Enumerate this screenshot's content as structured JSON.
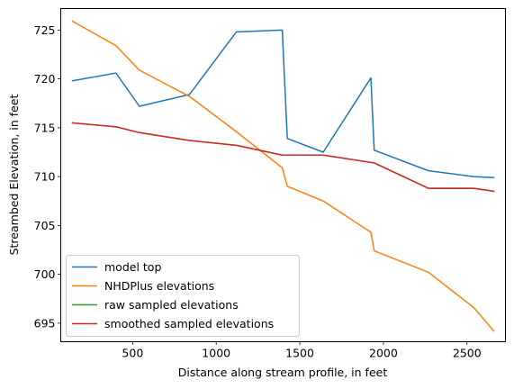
{
  "chart_data": {
    "type": "line",
    "title": "",
    "xlabel": "Distance along stream profile, in feet",
    "ylabel": "Streambed Elevation, in feet",
    "xlim": [
      70,
      2730
    ],
    "ylim": [
      693.1,
      727.2
    ],
    "xticks": [
      500,
      1000,
      1500,
      2000,
      2500
    ],
    "yticks": [
      695,
      700,
      705,
      710,
      715,
      720,
      725
    ],
    "grid": false,
    "legend_position": "lower left",
    "series": [
      {
        "name": "model top",
        "color": "#1f77b4",
        "points": [
          [
            140,
            719.8
          ],
          [
            400,
            720.6
          ],
          [
            540,
            717.2
          ],
          [
            840,
            718.4
          ],
          [
            1120,
            724.8
          ],
          [
            1395,
            725.0
          ],
          [
            1425,
            713.9
          ],
          [
            1640,
            712.5
          ],
          [
            1925,
            720.1
          ],
          [
            1945,
            712.7
          ],
          [
            2270,
            710.6
          ],
          [
            2540,
            710.0
          ],
          [
            2660,
            709.9
          ]
        ]
      },
      {
        "name": "NHDPlus elevations",
        "color": "#ff7f0e",
        "points": [
          [
            140,
            725.9
          ],
          [
            400,
            723.4
          ],
          [
            540,
            720.9
          ],
          [
            840,
            718.2
          ],
          [
            1120,
            714.6
          ],
          [
            1395,
            710.9
          ],
          [
            1425,
            709.0
          ],
          [
            1640,
            707.5
          ],
          [
            1925,
            704.3
          ],
          [
            1945,
            702.4
          ],
          [
            2270,
            700.2
          ],
          [
            2540,
            696.6
          ],
          [
            2660,
            694.2
          ]
        ]
      },
      {
        "name": "raw sampled elevations",
        "color": "#2ca02c",
        "points": [
          [
            140,
            715.5
          ],
          [
            400,
            715.1
          ],
          [
            540,
            714.5
          ],
          [
            840,
            713.7
          ],
          [
            1120,
            713.2
          ],
          [
            1395,
            712.2
          ],
          [
            1640,
            712.2
          ],
          [
            1945,
            711.4
          ],
          [
            2270,
            708.8
          ],
          [
            2540,
            708.8
          ],
          [
            2660,
            708.5
          ]
        ]
      },
      {
        "name": "smoothed sampled elevations",
        "color": "#d62728",
        "points": [
          [
            140,
            715.5
          ],
          [
            400,
            715.1
          ],
          [
            540,
            714.5
          ],
          [
            840,
            713.7
          ],
          [
            1120,
            713.2
          ],
          [
            1395,
            712.2
          ],
          [
            1640,
            712.2
          ],
          [
            1945,
            711.4
          ],
          [
            2270,
            708.8
          ],
          [
            2540,
            708.8
          ],
          [
            2660,
            708.5
          ]
        ]
      }
    ]
  }
}
